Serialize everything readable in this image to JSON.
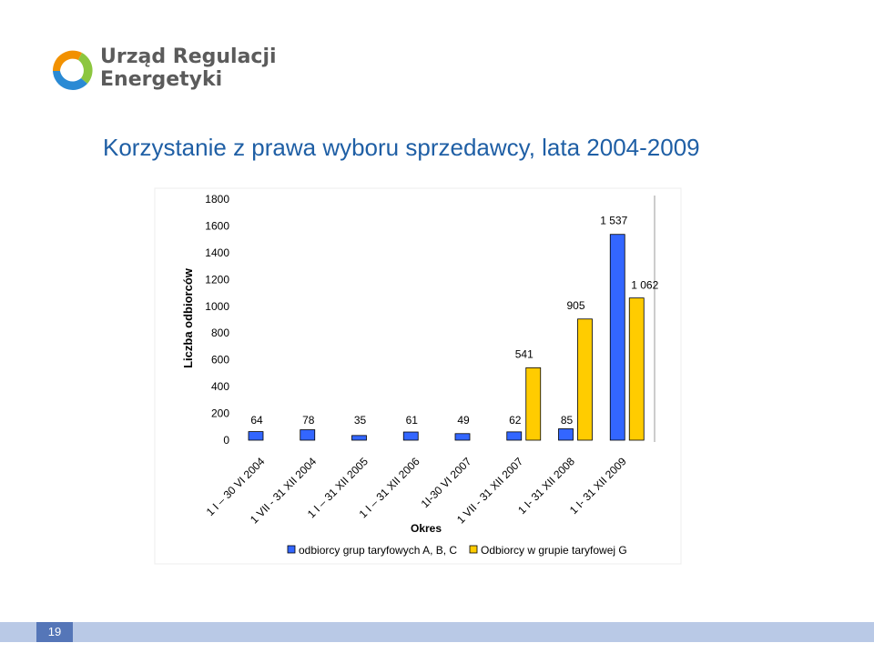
{
  "logo": {
    "line1": "Urząd Regulacji",
    "line2": "Energetyki",
    "colors": {
      "orange": "#f29100",
      "green": "#8cc63f",
      "blue": "#2a8ad4",
      "text": "#5b5b5b"
    }
  },
  "slide": {
    "title": "Korzystanie z prawa wyboru sprzedawcy,  lata 2004-2009",
    "page_number": "19"
  },
  "chart_data": {
    "type": "bar",
    "xlabel": "Okres",
    "ylabel": "Liczba odbiorców",
    "ylim": [
      0,
      1800
    ],
    "yticks": [
      "0",
      "200",
      "400",
      "600",
      "800",
      "1000",
      "1200",
      "1400",
      "1600",
      "1800"
    ],
    "categories": [
      "1 I – 30 VI 2004",
      "1 VII - 31 XII 2004",
      "1 I – 31 XII 2005",
      "1 I – 31 XII 2006",
      "1I-30 VI 2007",
      "1 VII - 31 XII 2007",
      "1 I- 31 XII 2008",
      "1 I- 31 XII 2009"
    ],
    "series": [
      {
        "name": "odbiorcy grup taryfowych A, B, C",
        "color": "#3366ff",
        "values": [
          64,
          78,
          35,
          61,
          49,
          62,
          85,
          1537
        ],
        "labels": [
          "64",
          "78",
          "35",
          "61",
          "49",
          "62",
          "85",
          "1 537"
        ]
      },
      {
        "name": "Odbiorcy w grupie taryfowej G",
        "color": "#ffcc00",
        "values": [
          null,
          null,
          null,
          null,
          null,
          541,
          905,
          1062
        ],
        "labels": [
          "",
          "",
          "",
          "",
          "",
          "541",
          "905",
          "1 062"
        ]
      }
    ],
    "legend_position": "bottom",
    "grid": false
  }
}
